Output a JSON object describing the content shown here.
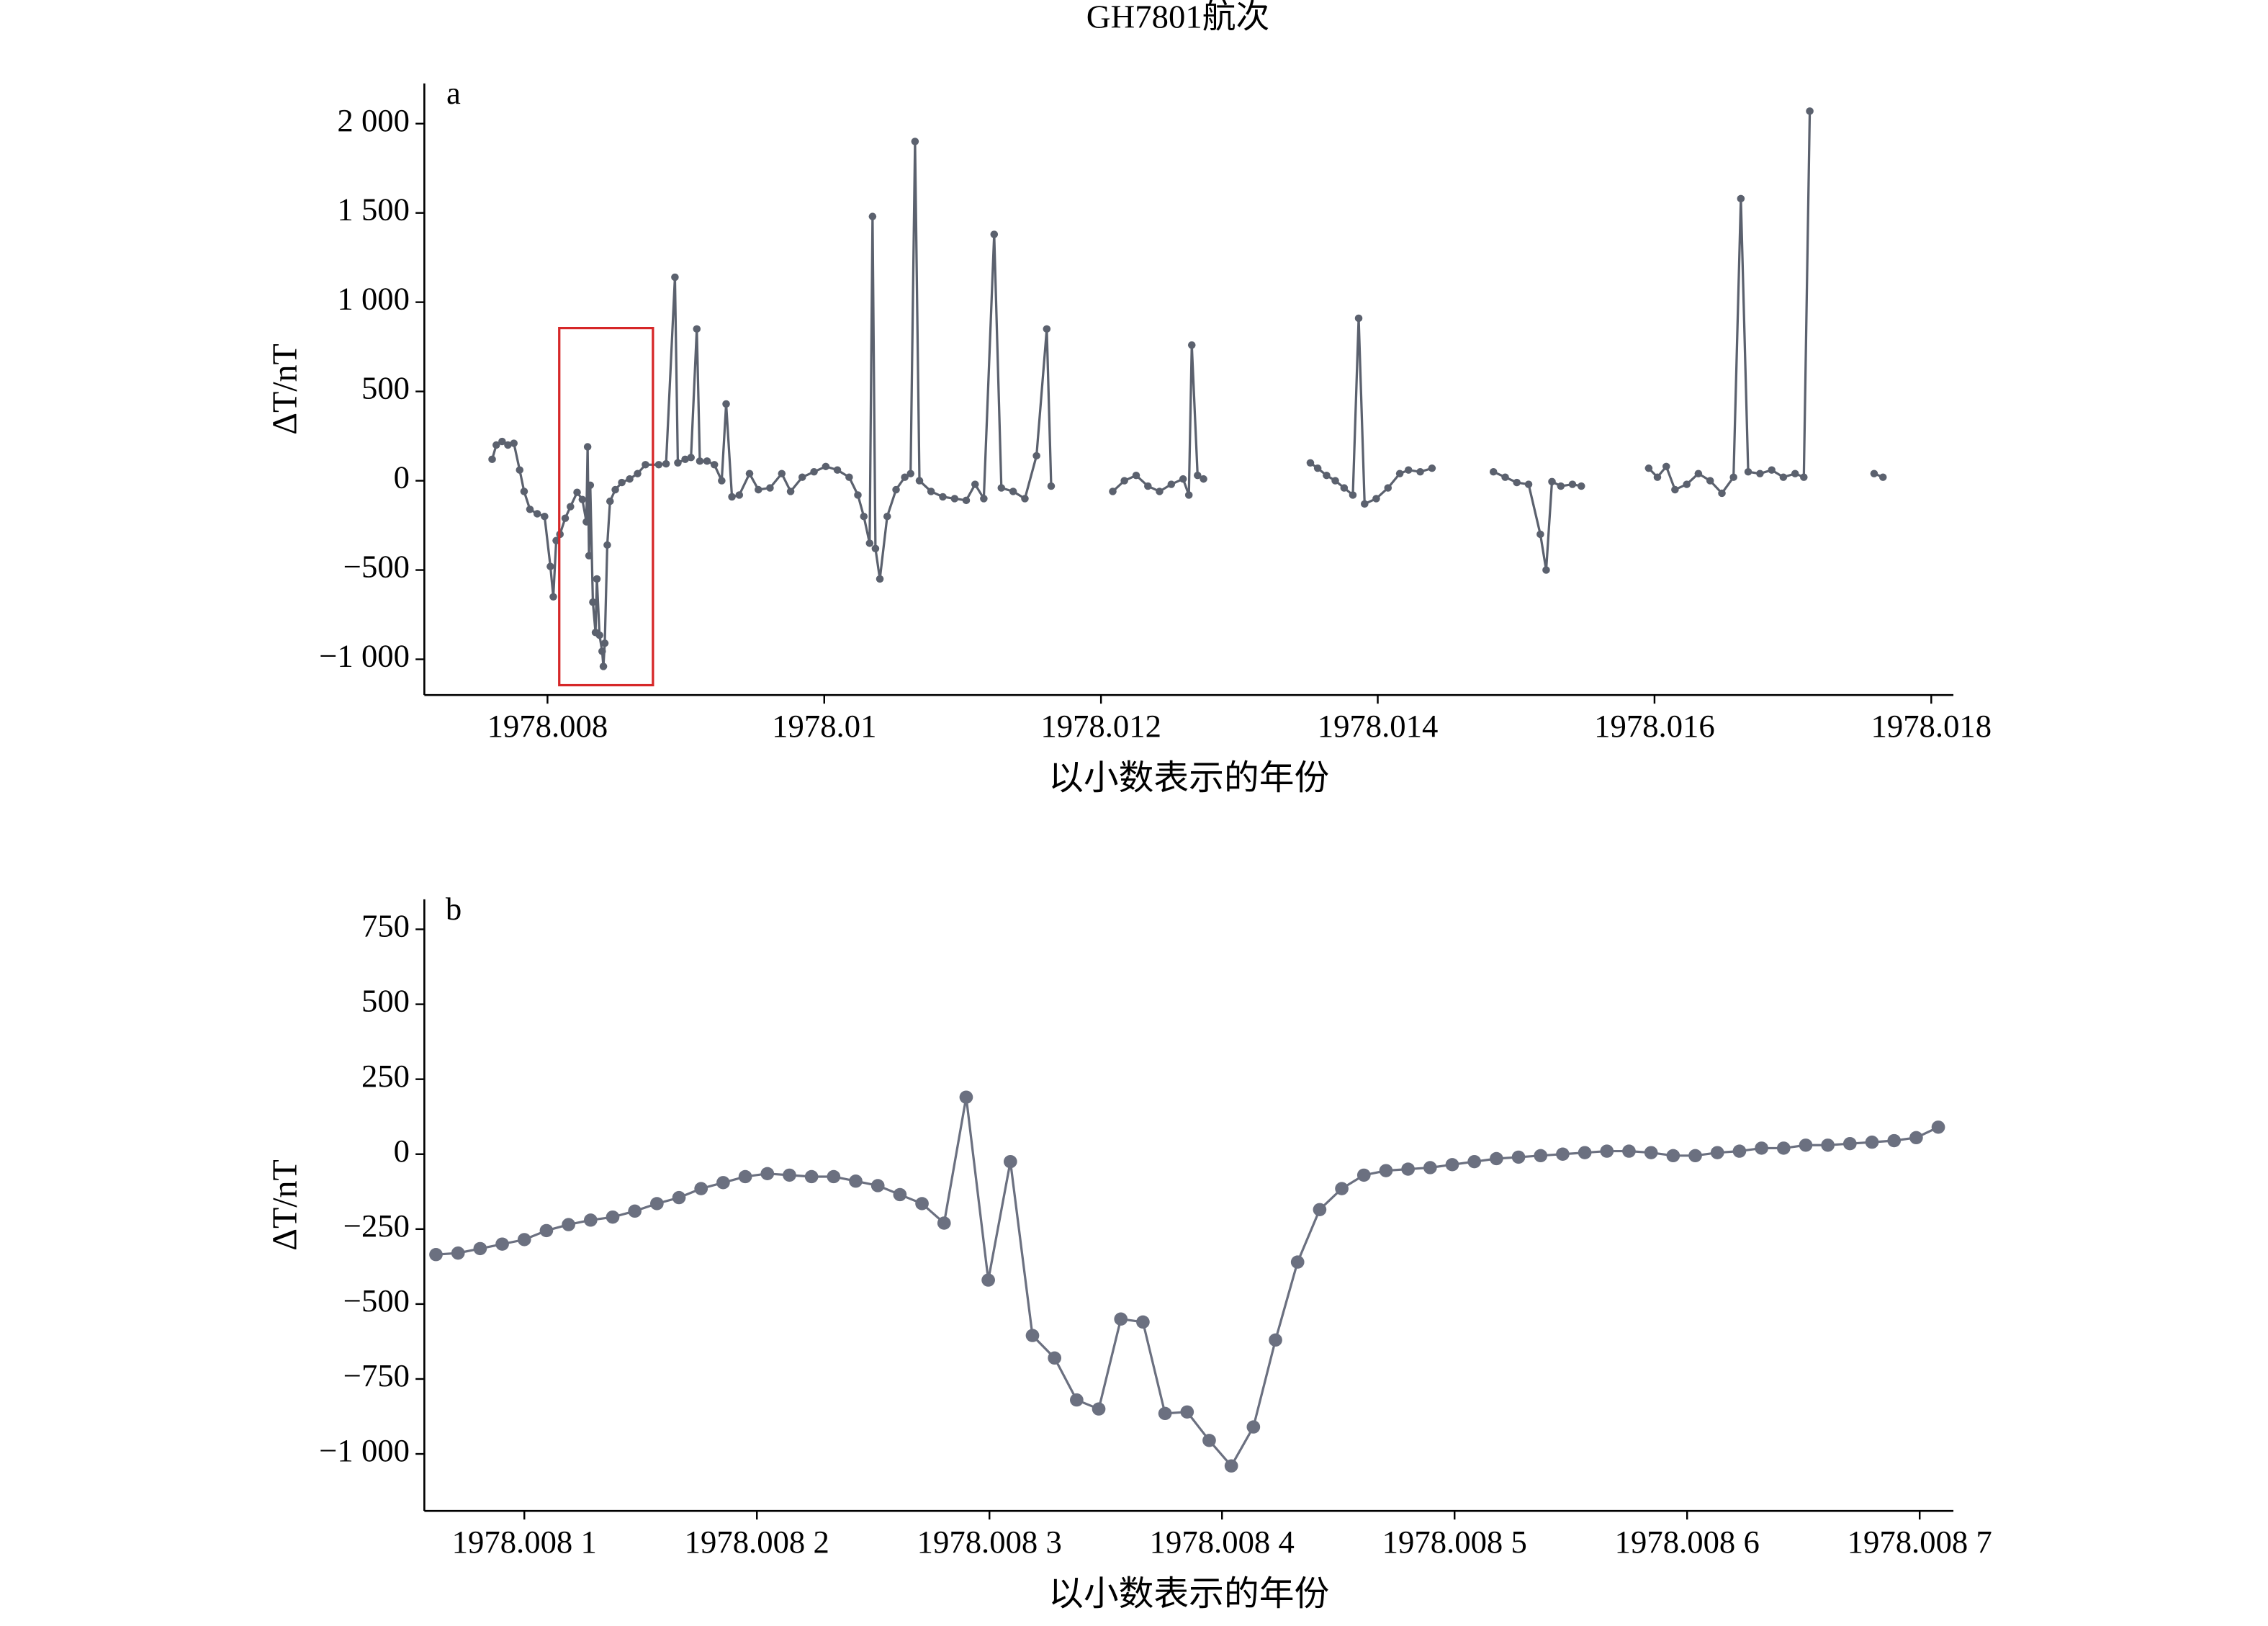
{
  "chart_data": [
    {
      "type": "line",
      "title": "GH7801航次",
      "panel_label": "a",
      "xlabel": "以小数表示的年份",
      "ylabel": "ΔT/nT",
      "xlim": [
        1978.00711,
        1978.01816
      ],
      "ylim": [
        -1200,
        2225
      ],
      "xticks": [
        1978.008,
        1978.01,
        1978.012,
        1978.014,
        1978.016,
        1978.018
      ],
      "yticks": [
        {
          "value": -1000,
          "label": "−1 000"
        },
        {
          "value": -500,
          "label": "−500"
        },
        0,
        500,
        {
          "value": 1000,
          "label": "1 000"
        },
        {
          "value": 1500,
          "label": "1 500"
        },
        {
          "value": 2000,
          "label": "2 000"
        }
      ],
      "highlight": {
        "xlim": [
          1978.008085,
          1978.008762
        ],
        "ylim": [
          -1145,
          855
        ],
        "color": "#d62728"
      },
      "color": "#5b616e",
      "x": [
        1978.0076,
        1978.00763,
        1978.007672,
        1978.007714,
        1978.007757,
        1978.007799,
        1978.007831,
        1978.007873,
        1978.007926,
        1978.007979,
        1978.008021,
        1978.008042,
        1978.008063,
        1978.00809,
        1978.008128,
        1978.008166,
        1978.008214,
        1978.008252,
        1978.008281,
        1978.00829,
        1978.0083,
        1978.008309,
        1978.008328,
        1978.008347,
        1978.008357,
        1978.008376,
        1978.008395,
        1978.008404,
        1978.008414,
        1978.008432,
        1978.008452,
        1978.00849,
        1978.008537,
        1978.008594,
        1978.008651,
        1978.008708,
        1978.008804,
        1978.008857,
        1978.008921,
        1978.008942,
        1978.008995,
        1978.009037,
        1978.009079,
        1978.009101,
        1978.009153,
        1978.009206,
        1978.009259,
        1978.009291,
        1978.009333,
        1978.009386,
        1978.00946,
        1978.009524,
        1978.009608,
        1978.009693,
        1978.009757,
        1978.009841,
        1978.009926,
        1978.010011,
        1978.010095,
        1978.01018,
        1978.010243,
        1978.010286,
        1978.010328,
        1978.010349,
        1978.01037,
        1978.010402,
        1978.010455,
        1978.010519,
        1978.010582,
        1978.010624,
        1978.010656,
        1978.010688,
        1978.010772,
        1978.010857,
        1978.010942,
        1978.011026,
        1978.01109,
        1978.011153,
        1978.011228,
        1978.01128,
        1978.011365,
        1978.01145,
        1978.011534,
        1978.011608,
        1978.01164,
        1978.01186,
        1978.012085,
        1978.012169,
        1978.012254,
        1978.012339,
        1978.012423,
        1978.012508,
        1978.012593,
        1978.012635,
        1978.012656,
        1978.012698,
        1978.012741,
        1978.0131,
        1978.013513,
        1978.013566,
        1978.01363,
        1978.013693,
        1978.013757,
        1978.01382,
        1978.013862,
        1978.013905,
        1978.013989,
        1978.014074,
        1978.014159,
        1978.014222,
        1978.014307,
        1978.014392,
        1978.0146,
        1978.014836,
        1978.014921,
        1978.015005,
        1978.01509,
        1978.015175,
        1978.015217,
        1978.015259,
        1978.015323,
        1978.015407,
        1978.015471,
        1978.0157,
        1978.015958,
        1978.016021,
        1978.016085,
        1978.016148,
        1978.016233,
        1978.016317,
        1978.016402,
        1978.016487,
        1978.016571,
        1978.016624,
        1978.016677,
        1978.016762,
        1978.016847,
        1978.016931,
        1978.017016,
        1978.017079,
        1978.017122,
        1978.0173,
        1978.017587,
        1978.017651
      ],
      "values": [
        120,
        200,
        220,
        200,
        210,
        60,
        -60,
        -160,
        -185,
        -200,
        -480,
        -650,
        -335,
        -300,
        -210,
        -145,
        -65,
        -105,
        -230,
        190,
        -420,
        -25,
        -680,
        -850,
        -550,
        -865,
        -955,
        -1040,
        -910,
        -360,
        -115,
        -50,
        -10,
        10,
        40,
        90,
        90,
        95,
        1140,
        100,
        120,
        130,
        850,
        110,
        110,
        90,
        0,
        430,
        -90,
        -80,
        40,
        -50,
        -40,
        40,
        -60,
        20,
        50,
        80,
        60,
        20,
        -80,
        -200,
        -350,
        1480,
        -380,
        -550,
        -200,
        -50,
        20,
        40,
        1900,
        0,
        -60,
        -90,
        -100,
        -110,
        -20,
        -100,
        1380,
        -40,
        -60,
        -100,
        140,
        850,
        -30,
        null,
        -60,
        0,
        30,
        -30,
        -60,
        -20,
        10,
        -80,
        760,
        30,
        10,
        null,
        100,
        70,
        30,
        0,
        -40,
        -80,
        910,
        -130,
        -100,
        -40,
        40,
        60,
        50,
        70,
        null,
        50,
        20,
        -10,
        -20,
        -300,
        -500,
        -5,
        -30,
        -20,
        -30,
        null,
        70,
        20,
        80,
        -50,
        -20,
        40,
        0,
        -70,
        20,
        1580,
        50,
        40,
        60,
        20,
        40,
        20,
        2070,
        null,
        40,
        20
      ]
    },
    {
      "type": "line",
      "panel_label": "b",
      "xlabel": "以小数表示的年份",
      "ylabel": "ΔT/nT",
      "xlim": [
        1978.008057,
        1978.0087145
      ],
      "ylim": [
        -1190,
        850
      ],
      "xticks": [
        {
          "value": 1978.0081,
          "label": "1978.008 1"
        },
        {
          "value": 1978.0082,
          "label": "1978.008 2"
        },
        {
          "value": 1978.0083,
          "label": "1978.008 3"
        },
        {
          "value": 1978.0084,
          "label": "1978.008 4"
        },
        {
          "value": 1978.0085,
          "label": "1978.008 5"
        },
        {
          "value": 1978.0086,
          "label": "1978.008 6"
        },
        {
          "value": 1978.0087,
          "label": "1978.008 7"
        }
      ],
      "yticks": [
        {
          "value": -1000,
          "label": "−1 000"
        },
        {
          "value": -750,
          "label": "−750"
        },
        {
          "value": -500,
          "label": "−500"
        },
        {
          "value": -250,
          "label": "−250"
        },
        0,
        250,
        500,
        750
      ],
      "color": "#6b7080",
      "x": [
        1978.008062,
        1978.0080715,
        1978.008081,
        1978.0080905,
        1978.0081,
        1978.0081095,
        1978.008119,
        1978.0081285,
        1978.008138,
        1978.0081475,
        1978.008157,
        1978.0081665,
        1978.008176,
        1978.0081855,
        1978.008195,
        1978.0082045,
        1978.008214,
        1978.0082235,
        1978.008233,
        1978.0082425,
        1978.008252,
        1978.0082615,
        1978.008271,
        1978.0082805,
        1978.00829,
        1978.0082995,
        1978.008309,
        1978.0083185,
        1978.008328,
        1978.0083375,
        1978.008347,
        1978.0083565,
        1978.008366,
        1978.0083755,
        1978.008385,
        1978.0083945,
        1978.008404,
        1978.0084135,
        1978.008423,
        1978.0084325,
        1978.008442,
        1978.0084515,
        1978.008461,
        1978.0084705,
        1978.00848,
        1978.0084895,
        1978.008499,
        1978.0085085,
        1978.008518,
        1978.0085275,
        1978.008537,
        1978.0085465,
        1978.008556,
        1978.0085655,
        1978.008575,
        1978.0085845,
        1978.008594,
        1978.0086035,
        1978.008613,
        1978.0086225,
        1978.008632,
        1978.0086415,
        1978.008651,
        1978.0086605,
        1978.00867,
        1978.0086795,
        1978.008689,
        1978.0086985,
        1978.008708
      ],
      "values": [
        -335,
        -330,
        -315,
        -300,
        -285,
        -255,
        -235,
        -220,
        -210,
        -190,
        -165,
        -145,
        -115,
        -95,
        -75,
        -65,
        -70,
        -75,
        -75,
        -90,
        -105,
        -135,
        -165,
        -230,
        190,
        -420,
        -25,
        -605,
        -680,
        -820,
        -850,
        -550,
        -560,
        -865,
        -860,
        -955,
        -1040,
        -910,
        -620,
        -360,
        -185,
        -115,
        -70,
        -55,
        -50,
        -45,
        -35,
        -25,
        -15,
        -10,
        -5,
        0,
        5,
        10,
        10,
        5,
        -5,
        -5,
        5,
        10,
        20,
        20,
        30,
        30,
        35,
        40,
        45,
        55,
        90
      ]
    }
  ]
}
